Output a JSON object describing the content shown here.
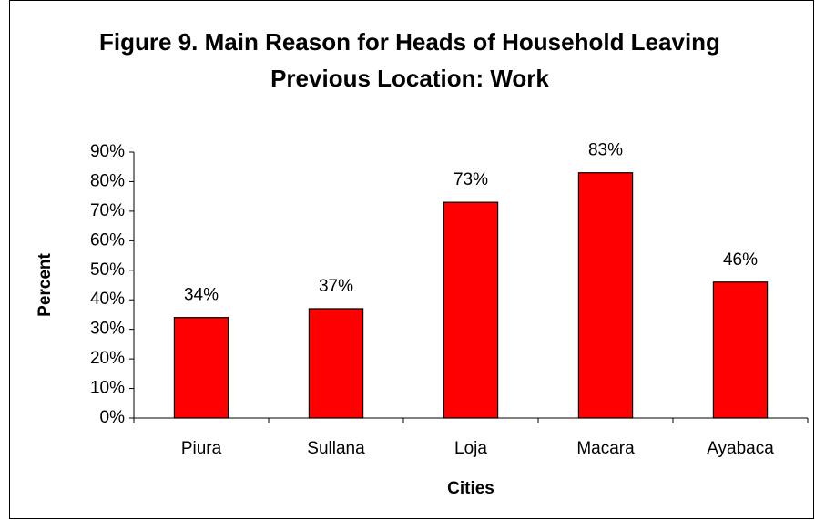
{
  "chart_data": {
    "type": "bar",
    "title": "Figure 9. Main Reason for Heads of Household Leaving Previous Location: Work",
    "x_label": "Cities",
    "y_label": "Percent",
    "categories": [
      "Piura",
      "Sullana",
      "Loja",
      "Macara",
      "Ayabaca"
    ],
    "values": [
      34,
      37,
      73,
      83,
      46
    ],
    "value_labels": [
      "34%",
      "37%",
      "73%",
      "83%",
      "46%"
    ],
    "color": "#ff0000",
    "ylim": [
      0,
      90
    ],
    "yticks": [
      {
        "value": 0,
        "label": "0%"
      },
      {
        "value": 10,
        "label": "10%"
      },
      {
        "value": 20,
        "label": "20%"
      },
      {
        "value": 30,
        "label": "30%"
      },
      {
        "value": 40,
        "label": "40%"
      },
      {
        "value": 50,
        "label": "50%"
      },
      {
        "value": 60,
        "label": "60%"
      },
      {
        "value": 70,
        "label": "70%"
      },
      {
        "value": 80,
        "label": "80%"
      },
      {
        "value": 90,
        "label": "90%"
      }
    ],
    "grid": false
  }
}
